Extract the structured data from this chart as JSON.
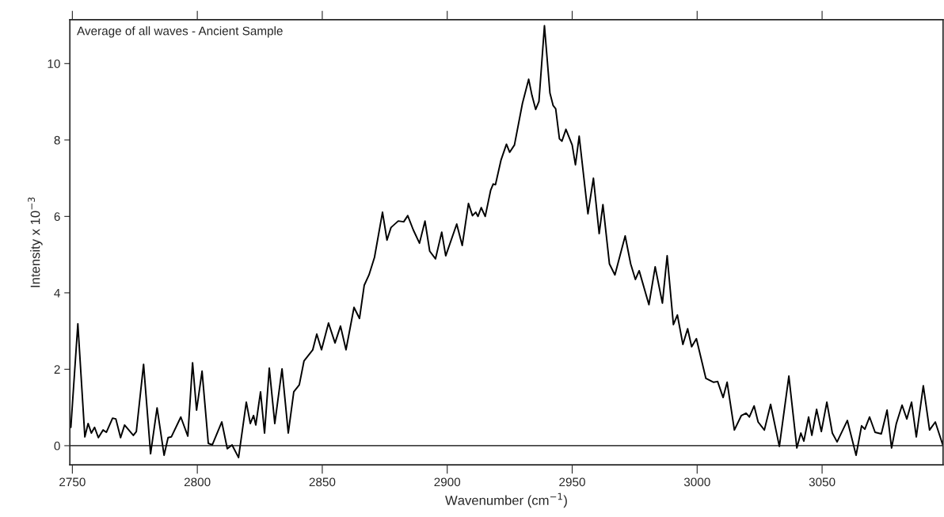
{
  "chart_data": {
    "type": "line",
    "xlabel": "Wavenumber (cm$^{−1}$)",
    "ylabel": "Intensity x 10$^{−3}$",
    "annotations": [
      "Average of all waves - Ancient Sample"
    ],
    "xlim": [
      2749,
      3098.4
    ],
    "ylim": [
      -0.5,
      11.15
    ],
    "xticks": [
      2750,
      2800,
      2850,
      2900,
      2950,
      3000,
      3050
    ],
    "yticks": [
      0,
      2,
      4,
      6,
      8,
      10
    ],
    "ref_lines": [
      {
        "axis": "y",
        "value": 0,
        "color": "#000000"
      }
    ],
    "grid": false,
    "legend": false,
    "series": [
      {
        "color": "#000000",
        "x": [
          2749.4,
          2752.2,
          2755.0,
          2756.3,
          2757.6,
          2758.9,
          2760.4,
          2762.3,
          2763.6,
          2766.1,
          2767.4,
          2769.3,
          2770.9,
          2774.4,
          2775.6,
          2778.5,
          2781.3,
          2783.9,
          2786.7,
          2788.3,
          2789.6,
          2793.4,
          2796.2,
          2798.1,
          2799.7,
          2801.9,
          2804.4,
          2806.0,
          2809.8,
          2812.0,
          2813.9,
          2816.5,
          2819.6,
          2821.2,
          2822.5,
          2823.4,
          2825.3,
          2826.9,
          2828.8,
          2831.0,
          2833.9,
          2836.4,
          2838.6,
          2840.8,
          2842.7,
          2846.2,
          2847.8,
          2849.7,
          2852.5,
          2855.1,
          2857.3,
          2859.5,
          2862.7,
          2864.9,
          2866.8,
          2868.7,
          2870.9,
          2874.1,
          2875.9,
          2877.5,
          2880.4,
          2882.6,
          2884.2,
          2886.4,
          2888.9,
          2891.1,
          2893.0,
          2895.3,
          2897.8,
          2899.4,
          2903.8,
          2906.0,
          2908.5,
          2910.1,
          2911.4,
          2912.3,
          2913.6,
          2915.2,
          2917.4,
          2918.4,
          2919.3,
          2921.5,
          2923.7,
          2925.0,
          2926.9,
          2930.1,
          2932.6,
          2933.9,
          2935.4,
          2936.7,
          2938.9,
          2941.1,
          2942.4,
          2943.4,
          2944.9,
          2945.9,
          2947.5,
          2950.0,
          2951.3,
          2952.8,
          2956.3,
          2958.5,
          2960.8,
          2962.3,
          2964.9,
          2967.1,
          2971.2,
          2973.4,
          2975.3,
          2976.8,
          2980.7,
          2983.2,
          2986.1,
          2988.0,
          2990.5,
          2992.1,
          2994.3,
          2996.2,
          2997.8,
          2999.7,
          3003.5,
          3006.6,
          3008.2,
          3010.4,
          3012.0,
          3014.9,
          3017.7,
          3019.6,
          3020.9,
          3022.8,
          3024.4,
          3026.9,
          3029.4,
          3032.9,
          3036.7,
          3039.9,
          3041.5,
          3042.7,
          3044.6,
          3045.9,
          3047.8,
          3049.7,
          3051.9,
          3054.1,
          3056.0,
          3060.1,
          3063.6,
          3065.8,
          3067.1,
          3069.0,
          3071.2,
          3073.7,
          3076.0,
          3077.8,
          3079.7,
          3082.0,
          3083.9,
          3085.8,
          3087.7,
          3090.5,
          3093.0,
          3095.3,
          3098.4
        ],
        "values": [
          0.48,
          3.19,
          0.23,
          0.58,
          0.33,
          0.48,
          0.21,
          0.41,
          0.35,
          0.72,
          0.7,
          0.21,
          0.54,
          0.27,
          0.37,
          2.13,
          -0.21,
          0.99,
          -0.25,
          0.21,
          0.23,
          0.75,
          0.25,
          2.17,
          0.93,
          1.95,
          0.06,
          0.02,
          0.62,
          -0.08,
          0.02,
          -0.31,
          1.14,
          0.58,
          0.79,
          0.54,
          1.41,
          0.33,
          2.03,
          0.58,
          2.01,
          0.33,
          1.41,
          1.59,
          2.22,
          2.51,
          2.92,
          2.51,
          3.21,
          2.69,
          3.13,
          2.51,
          3.62,
          3.33,
          4.2,
          4.47,
          4.93,
          6.11,
          5.38,
          5.71,
          5.88,
          5.86,
          6.02,
          5.65,
          5.3,
          5.88,
          5.09,
          4.89,
          5.59,
          4.97,
          5.8,
          5.24,
          6.34,
          6.02,
          6.11,
          6.0,
          6.23,
          6.0,
          6.69,
          6.85,
          6.83,
          7.47,
          7.89,
          7.68,
          7.87,
          8.96,
          9.59,
          9.17,
          8.8,
          9.01,
          10.99,
          9.23,
          8.9,
          8.82,
          8.03,
          7.97,
          8.28,
          7.87,
          7.35,
          8.1,
          6.07,
          7.0,
          5.55,
          6.31,
          4.76,
          4.47,
          5.49,
          4.76,
          4.35,
          4.58,
          3.69,
          4.68,
          3.73,
          4.97,
          3.17,
          3.42,
          2.65,
          3.06,
          2.59,
          2.8,
          1.76,
          1.66,
          1.68,
          1.26,
          1.66,
          0.41,
          0.79,
          0.85,
          0.75,
          1.04,
          0.62,
          0.41,
          1.08,
          -0.02,
          1.82,
          -0.06,
          0.33,
          0.12,
          0.75,
          0.27,
          0.95,
          0.37,
          1.14,
          0.33,
          0.1,
          0.66,
          -0.25,
          0.52,
          0.43,
          0.75,
          0.35,
          0.31,
          0.93,
          -0.06,
          0.58,
          1.06,
          0.7,
          1.14,
          0.23,
          1.57,
          0.41,
          0.62,
          0.0
        ]
      }
    ]
  }
}
